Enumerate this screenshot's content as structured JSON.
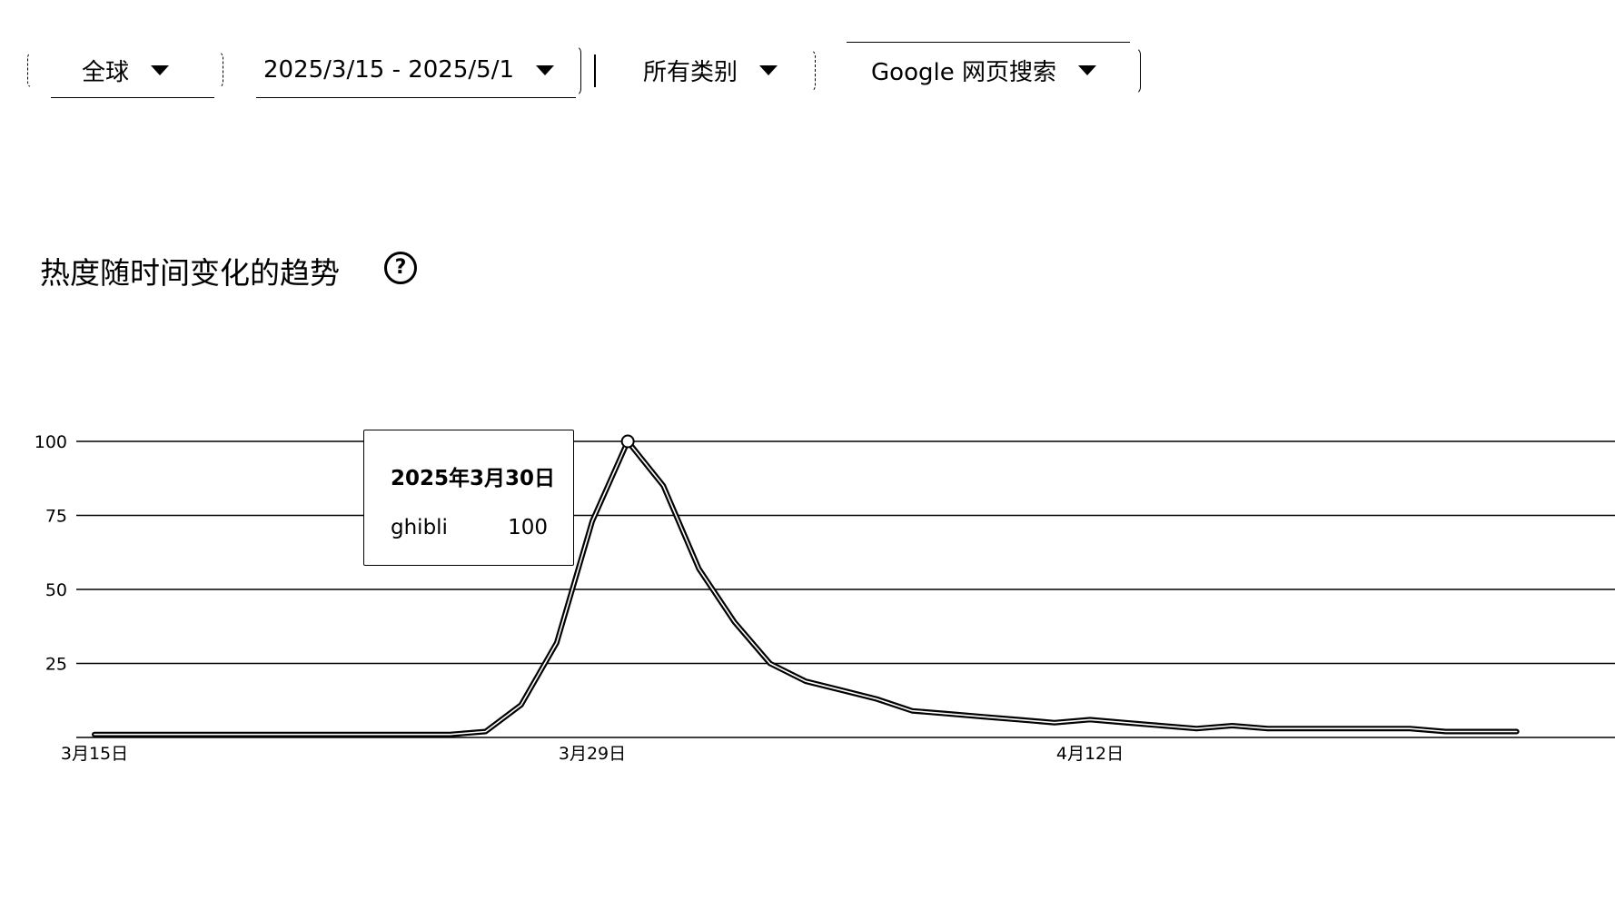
{
  "filters": {
    "region": "全球",
    "date_range": "2025/3/15 - 2025/5/1",
    "category": "所有类别",
    "search_type": "Google 网页搜索"
  },
  "section": {
    "title": "热度随时间变化的趋势",
    "help_icon": "help-circle-icon"
  },
  "tooltip": {
    "date": "2025年3月30日",
    "term": "ghibli",
    "value": "100"
  },
  "chart_data": {
    "type": "line",
    "title": "",
    "xlabel": "",
    "ylabel": "",
    "ylim": [
      0,
      100
    ],
    "y_ticks": [
      "100",
      "75",
      "50",
      "25"
    ],
    "x_tick_labels": [
      "3月15日",
      "3月29日",
      "4月12日"
    ],
    "grid": true,
    "series": [
      {
        "name": "ghibli",
        "x": [
          "3/15",
          "3/16",
          "3/17",
          "3/18",
          "3/19",
          "3/20",
          "3/21",
          "3/22",
          "3/23",
          "3/24",
          "3/25",
          "3/26",
          "3/27",
          "3/28",
          "3/29",
          "3/30",
          "3/31",
          "4/1",
          "4/2",
          "4/3",
          "4/4",
          "4/5",
          "4/6",
          "4/7",
          "4/8",
          "4/9",
          "4/10",
          "4/11",
          "4/12",
          "4/13",
          "4/14",
          "4/15",
          "4/16",
          "4/17",
          "4/18",
          "4/19",
          "4/20",
          "4/21",
          "4/22",
          "4/23",
          "4/24"
        ],
        "values": [
          1,
          1,
          1,
          1,
          1,
          1,
          1,
          1,
          1,
          1,
          1,
          2,
          11,
          32,
          73,
          100,
          85,
          57,
          39,
          25,
          19,
          16,
          13,
          9,
          8,
          7,
          6,
          5,
          6,
          5,
          4,
          3,
          4,
          3,
          3,
          3,
          3,
          3,
          2,
          2,
          2
        ]
      }
    ],
    "highlight": {
      "x": "3/30",
      "value": 100
    }
  }
}
